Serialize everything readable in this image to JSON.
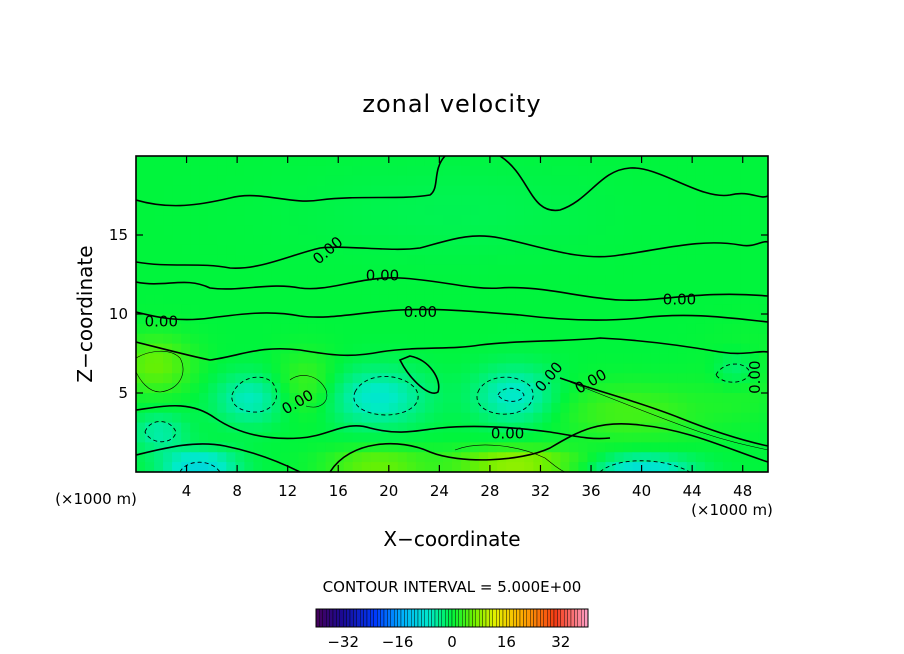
{
  "chart_data": {
    "type": "heatmap",
    "title": "zonal velocity",
    "xlabel": "X−coordinate",
    "ylabel": "Z−coordinate",
    "x_unit_left": "(×1000 m)",
    "x_unit_right": "(×1000 m)",
    "xlim": [
      0,
      50
    ],
    "ylim": [
      0,
      20
    ],
    "x_ticks": [
      4,
      8,
      12,
      16,
      20,
      24,
      28,
      32,
      36,
      40,
      44,
      48
    ],
    "y_ticks": [
      5,
      10,
      15
    ],
    "contour_interval_text": "CONTOUR INTERVAL =  5.000E+00",
    "contour_labels": [
      {
        "text": "0.00",
        "x": 15.2,
        "y": 14.0,
        "rotate": -40
      },
      {
        "text": "0.00",
        "x": 19.5,
        "y": 12.4,
        "rotate": 0
      },
      {
        "text": "0.00",
        "x": 22.5,
        "y": 10.1,
        "rotate": 0
      },
      {
        "text": "0.00",
        "x": 2.0,
        "y": 9.5,
        "rotate": 0
      },
      {
        "text": "0.00",
        "x": 43.0,
        "y": 10.9,
        "rotate": 0
      },
      {
        "text": "0.00",
        "x": 12.8,
        "y": 4.4,
        "rotate": -30
      },
      {
        "text": "0.00",
        "x": 32.7,
        "y": 6.0,
        "rotate": -50
      },
      {
        "text": "0.00",
        "x": 36.0,
        "y": 5.7,
        "rotate": -30
      },
      {
        "text": "0.00",
        "x": 29.4,
        "y": 2.4,
        "rotate": 0
      },
      {
        "text": "0.00",
        "x": 49.0,
        "y": 6.0,
        "rotate": -90
      }
    ],
    "colorbar": {
      "min": -40,
      "max": 40,
      "ticks": [
        -32,
        -16,
        0,
        16,
        32
      ]
    },
    "field_features": [
      {
        "kind": "base",
        "value": 0.0
      },
      {
        "kind": "blob",
        "x": 30,
        "y": 0.6,
        "sx": 5,
        "sy": 0.9,
        "value": 9
      },
      {
        "kind": "blob",
        "x": 19,
        "y": 0.5,
        "sx": 4,
        "sy": 1.0,
        "value": 6
      },
      {
        "kind": "blob",
        "x": 39,
        "y": 3.8,
        "sx": 6,
        "sy": 1.8,
        "value": 4
      },
      {
        "kind": "blob",
        "x": 1.5,
        "y": 6.8,
        "sx": 3,
        "sy": 1.8,
        "value": 6
      },
      {
        "kind": "blob",
        "x": 13.5,
        "y": 5.5,
        "sx": 2.5,
        "sy": 2.0,
        "value": 4
      },
      {
        "kind": "blob",
        "x": 48,
        "y": 6,
        "sx": 3,
        "sy": 2.5,
        "value": 2
      },
      {
        "kind": "blob",
        "x": 9,
        "y": 4.6,
        "sx": 2.8,
        "sy": 1.6,
        "value": -6
      },
      {
        "kind": "blob",
        "x": 19,
        "y": 4.7,
        "sx": 4.0,
        "sy": 1.8,
        "value": -7
      },
      {
        "kind": "blob",
        "x": 30,
        "y": 4.8,
        "sx": 3.2,
        "sy": 1.8,
        "value": -7
      },
      {
        "kind": "blob",
        "x": 5,
        "y": 0.4,
        "sx": 3.0,
        "sy": 1.0,
        "value": -9
      },
      {
        "kind": "blob",
        "x": 1.8,
        "y": 2.5,
        "sx": 2.2,
        "sy": 1.2,
        "value": -5
      },
      {
        "kind": "blob",
        "x": 40,
        "y": 0.3,
        "sx": 4.0,
        "sy": 0.8,
        "value": -8
      },
      {
        "kind": "blob",
        "x": 47.5,
        "y": 6.5,
        "sx": 1.8,
        "sy": 1.2,
        "value": -4
      },
      {
        "kind": "blob",
        "x": 25,
        "y": 16.5,
        "sx": 12,
        "sy": 3,
        "value": -1
      }
    ]
  }
}
